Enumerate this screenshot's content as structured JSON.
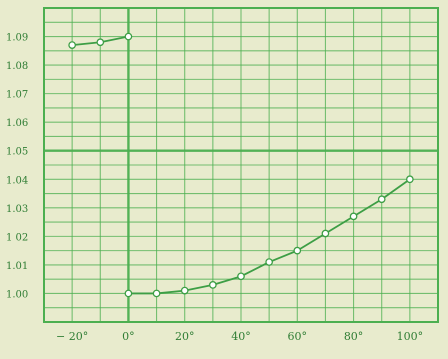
{
  "chart_data": {
    "type": "line",
    "title": "",
    "xlabel": "",
    "ylabel": "",
    "x_ticks": [
      {
        "value": -20,
        "label": "− 20°"
      },
      {
        "value": 0,
        "label": "0°"
      },
      {
        "value": 20,
        "label": "20°"
      },
      {
        "value": 40,
        "label": "40°"
      },
      {
        "value": 60,
        "label": "60°"
      },
      {
        "value": 80,
        "label": "80°"
      },
      {
        "value": 100,
        "label": "100°"
      }
    ],
    "y_ticks": [
      {
        "value": 1.0,
        "label": "1.00"
      },
      {
        "value": 1.01,
        "label": "1.01"
      },
      {
        "value": 1.02,
        "label": "1 02"
      },
      {
        "value": 1.03,
        "label": "1.03"
      },
      {
        "value": 1.04,
        "label": "1.04"
      },
      {
        "value": 1.05,
        "label": "1.05"
      },
      {
        "value": 1.06,
        "label": "1.06"
      },
      {
        "value": 1.07,
        "label": "1.07"
      },
      {
        "value": 1.08,
        "label": "1.08"
      },
      {
        "value": 1.09,
        "label": "1.09"
      }
    ],
    "xlim": [
      -30,
      110
    ],
    "ylim": [
      0.99,
      1.1
    ],
    "grid": true,
    "series": [
      {
        "name": "",
        "x": [
          -20,
          -10,
          0
        ],
        "y": [
          1.087,
          1.088,
          1.09
        ]
      },
      {
        "name": "",
        "x": [
          0,
          10,
          20,
          30,
          40,
          50,
          60,
          70,
          80,
          90,
          100
        ],
        "y": [
          1.0,
          1.0,
          1.001,
          1.003,
          1.006,
          1.011,
          1.015,
          1.021,
          1.027,
          1.033,
          1.04
        ]
      }
    ],
    "colors": {
      "background": "#e8ebcd",
      "grid": "#4caf50",
      "line": "#3d9e45",
      "text": "#2f7d34",
      "marker_fill": "#ffffff"
    }
  }
}
